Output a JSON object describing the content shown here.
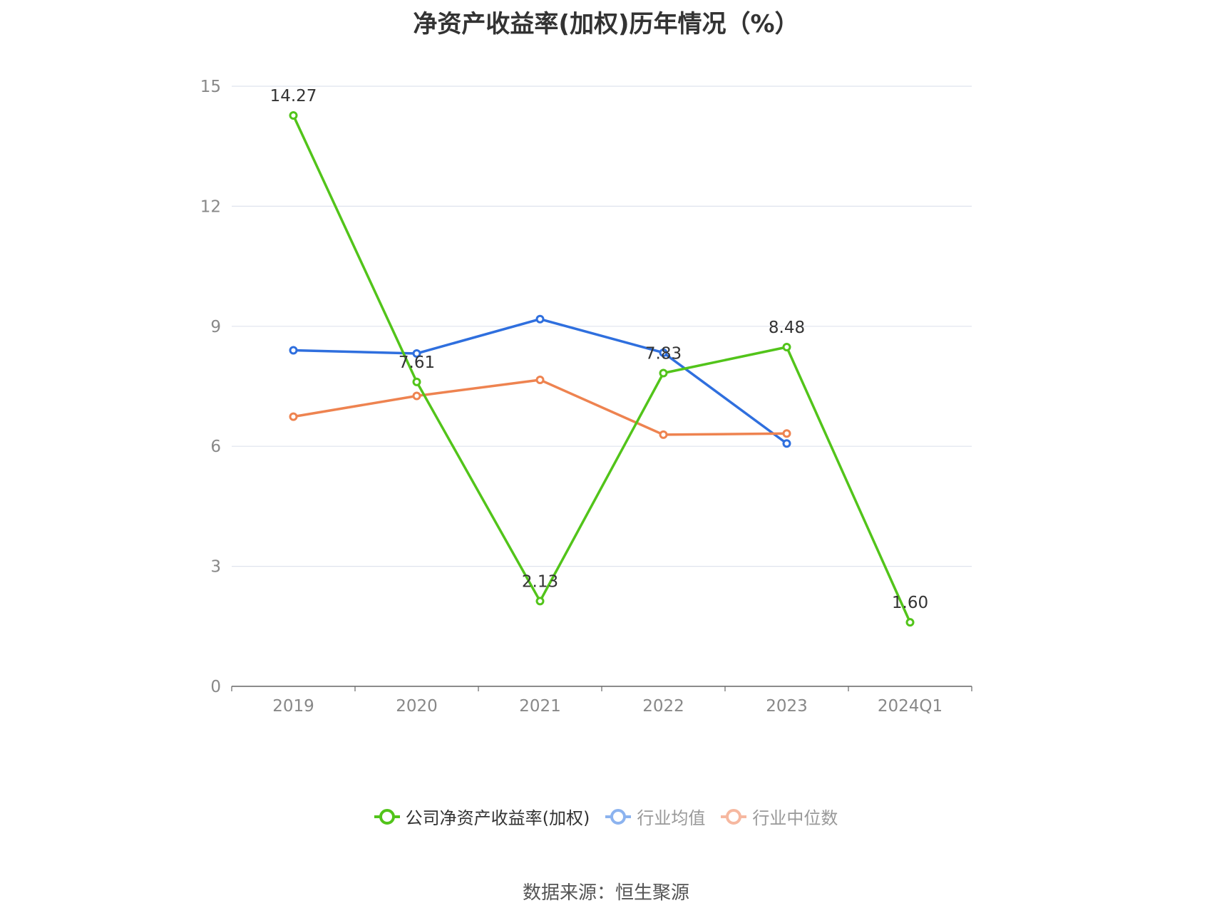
{
  "title": "净资产收益率(加权)历年情况（%）",
  "source": "数据来源：恒生聚源",
  "legend": [
    {
      "label": "公司净资产收益率(加权)",
      "color": "#52c41a",
      "text_color": "#333333"
    },
    {
      "label": "行业均值",
      "color": "#8cb3ef",
      "text_color": "#999999"
    },
    {
      "label": "行业中位数",
      "color": "#f6b8a0",
      "text_color": "#999999"
    }
  ],
  "chart_data": {
    "type": "line",
    "categories": [
      "2019",
      "2020",
      "2021",
      "2022",
      "2023",
      "2024Q1"
    ],
    "ylim": [
      0,
      15
    ],
    "yticks": [
      "0",
      "3",
      "6",
      "9",
      "12",
      "15"
    ],
    "grid": true,
    "legend_position": "bottom",
    "series": [
      {
        "name": "公司净资产收益率(加权)",
        "color": "#52c41a",
        "values": [
          14.27,
          7.61,
          2.13,
          7.83,
          8.48,
          1.6
        ],
        "labels": [
          "14.27",
          "7.61",
          "2.13",
          "7.83",
          "8.48",
          "1.60"
        ]
      },
      {
        "name": "行业均值",
        "color": "#2f6fde",
        "values": [
          8.4,
          8.32,
          9.18,
          8.34,
          6.07,
          null
        ]
      },
      {
        "name": "行业中位数",
        "color": "#ee8350",
        "values": [
          6.74,
          7.26,
          7.66,
          6.29,
          6.32,
          null
        ]
      }
    ]
  }
}
